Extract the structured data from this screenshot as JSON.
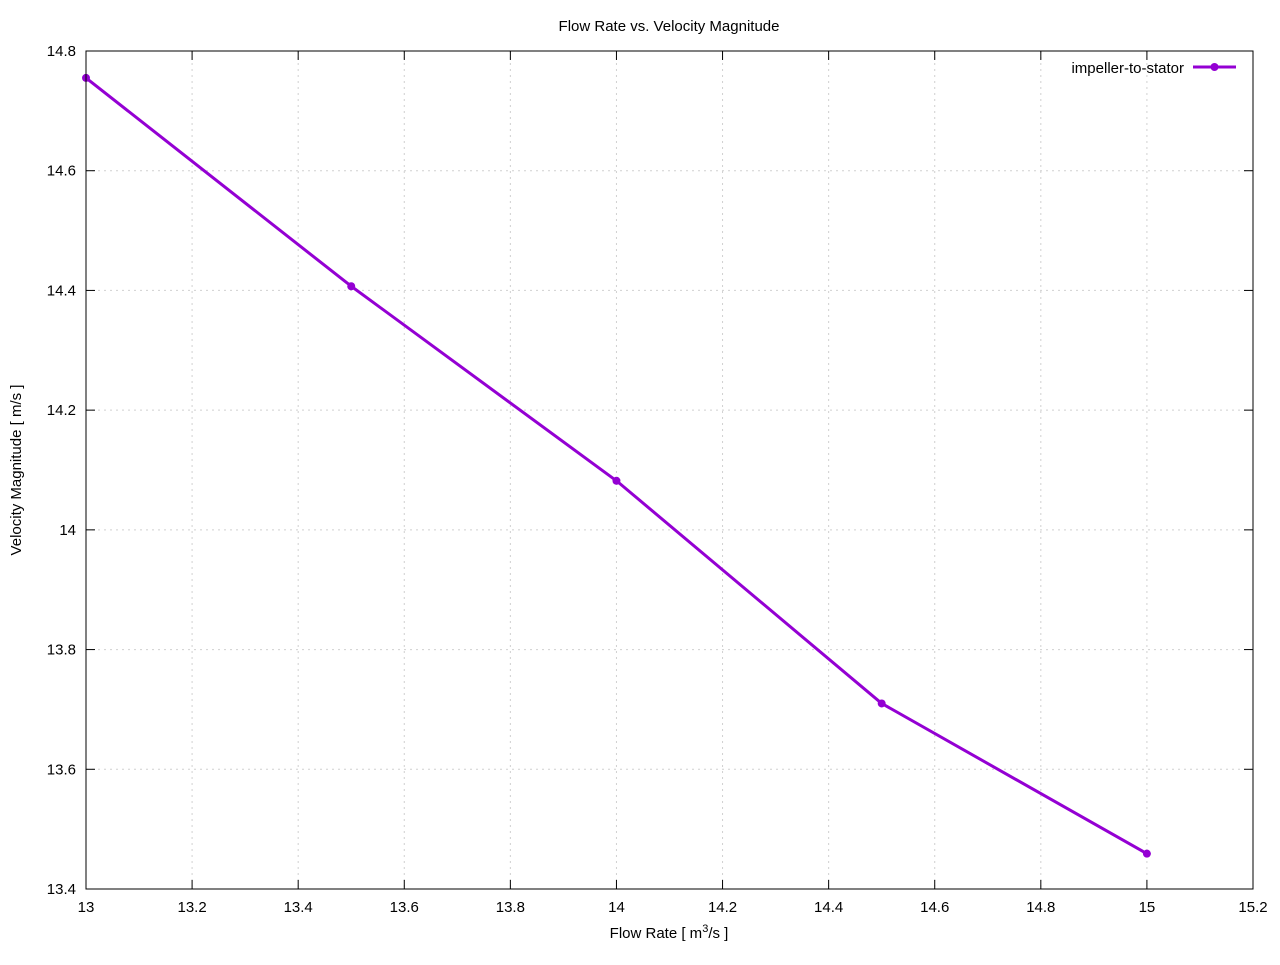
{
  "chart_data": {
    "type": "line",
    "title": "Flow Rate vs. Velocity Magnitude",
    "xlabel_main": "Flow Rate [ m",
    "xlabel_sup": "3",
    "xlabel_tail": "/s ]",
    "ylabel": "Velocity Magnitude [ m/s ]",
    "xlim": [
      13,
      15.2
    ],
    "ylim": [
      13.4,
      14.8
    ],
    "x_ticks": [
      13,
      13.2,
      13.4,
      13.6,
      13.8,
      14,
      14.2,
      14.4,
      14.6,
      14.8,
      15,
      15.2
    ],
    "x_tick_labels": [
      "13",
      "13.2",
      "13.4",
      "13.6",
      "13.8",
      "14",
      "14.2",
      "14.4",
      "14.6",
      "14.8",
      "15",
      "15.2"
    ],
    "y_ticks": [
      13.4,
      13.6,
      13.8,
      14,
      14.2,
      14.4,
      14.6,
      14.8
    ],
    "y_tick_labels": [
      "13.4",
      "13.6",
      "13.8",
      "14",
      "14.2",
      "14.4",
      "14.6",
      "14.8"
    ],
    "grid": true,
    "legend_position": "top-right",
    "series": [
      {
        "name": "impeller-to-stator",
        "color": "#9400d3",
        "x": [
          13,
          13.5,
          14,
          14.5,
          15
        ],
        "y": [
          14.755,
          14.407,
          14.082,
          13.71,
          13.459
        ]
      }
    ]
  }
}
